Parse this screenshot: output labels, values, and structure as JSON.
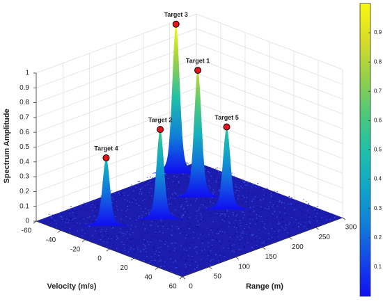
{
  "chart_data": {
    "type": "surface3d",
    "xlabel": "Range (m)",
    "ylabel": "Velocity (m/s)",
    "zlabel": "Spectrum Amplitude",
    "xlim": [
      0,
      300
    ],
    "xticks": [
      0,
      50,
      100,
      150,
      200,
      250,
      300
    ],
    "ylim": [
      -60,
      60
    ],
    "yticks": [
      -60,
      -40,
      -20,
      0,
      20,
      40,
      60
    ],
    "zlim": [
      0,
      1
    ],
    "zticks": [
      0,
      0.1,
      0.2,
      0.3,
      0.4,
      0.5,
      0.6,
      0.7,
      0.8,
      0.9,
      1
    ],
    "grid": true,
    "marker_color": "#e3141b",
    "colormap": [
      "#1010f0",
      "#1448e8",
      "#1080d8",
      "#10a8c8",
      "#20c0a8",
      "#50c878",
      "#98d048",
      "#d8dc28",
      "#f8f810"
    ],
    "colorbar": {
      "clim": [
        0,
        1
      ],
      "ticks": [
        0.1,
        0.2,
        0.3,
        0.4,
        0.5,
        0.6,
        0.7,
        0.8,
        0.9
      ]
    },
    "targets": [
      {
        "name": "Target 3",
        "x": 255,
        "y": -57,
        "z": 1.0
      },
      {
        "name": "Target 1",
        "x": 216,
        "y": -22,
        "z": 0.85
      },
      {
        "name": "Target 5",
        "x": 213,
        "y": 3,
        "z": 0.55
      },
      {
        "name": "Target 2",
        "x": 125,
        "y": -13,
        "z": 0.6
      },
      {
        "name": "Target 4",
        "x": 58,
        "y": -28,
        "z": 0.45
      }
    ]
  }
}
